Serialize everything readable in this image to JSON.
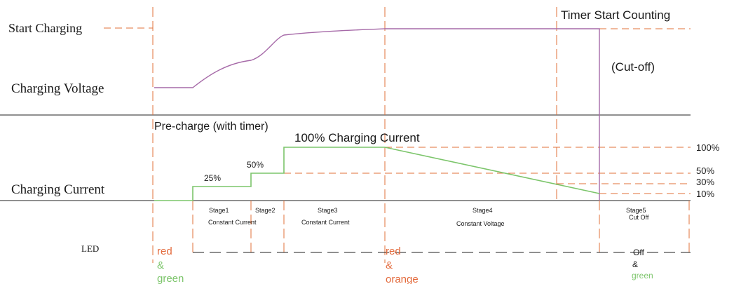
{
  "labels": {
    "start_charging": "Start Charging",
    "charging_voltage": "Charging Voltage",
    "charging_current": "Charging Current",
    "led": "LED",
    "timer_start_counting": "Timer Start Counting",
    "cut_off": "(Cut-off)",
    "pre_charge": "Pre-charge (with timer)",
    "full_current": "100% Charging Current",
    "pct_25": "25%",
    "pct_50_step": "50%"
  },
  "levels": {
    "pct_100": "100%",
    "pct_50": "50%",
    "pct_30": "30%",
    "pct_10": "10%"
  },
  "stages": {
    "stage1_title": "Stage1",
    "stage1_sub": "Constant Current",
    "stage2_title": "Stage2",
    "stage3_title": "Stage3",
    "stage3_sub": "Constant Current",
    "stage4_title": "Stage4",
    "stage4_sub": "Constant Voltage",
    "stage5_title": "Stage5",
    "stage5_sub": "Cut Off"
  },
  "led": {
    "red_1": "red",
    "amp_1": "&",
    "green_1": "green",
    "red_2": "red",
    "amp_2": "&",
    "orange_2": "orange",
    "off_3": "Off",
    "amp_3": "&",
    "green_3": "green"
  },
  "colors": {
    "dashed": "#e0703a",
    "voltage": "#a66aa8",
    "current": "#7cc56b",
    "led_red": "#e36a3c",
    "led_green": "#7cc56b",
    "text": "#1a1a1a"
  }
}
